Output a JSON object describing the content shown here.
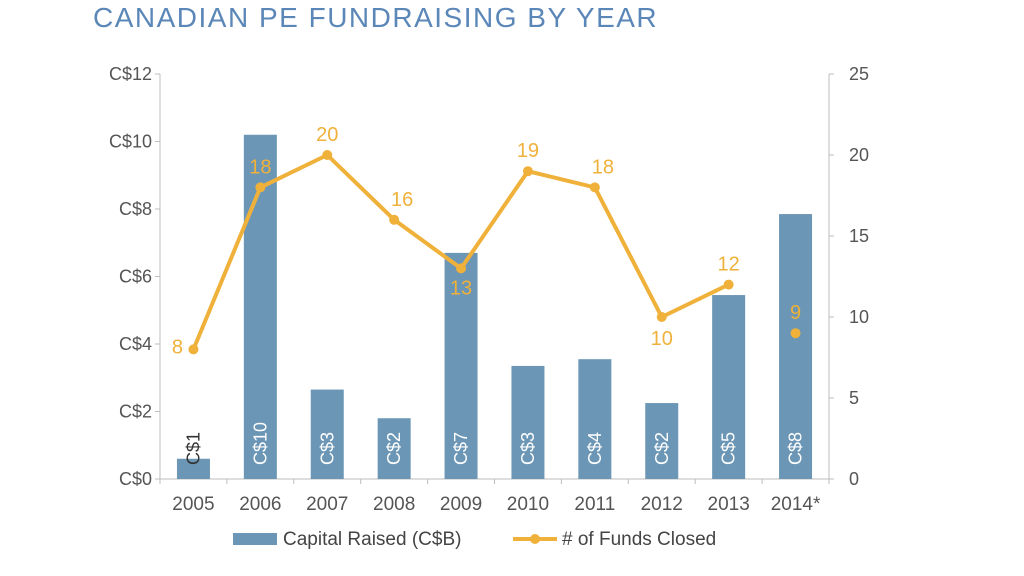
{
  "chart_data": {
    "type": "bar",
    "title": "CANADIAN PE FUNDRAISING BY YEAR",
    "categories": [
      "2005",
      "2006",
      "2007",
      "2008",
      "2009",
      "2010",
      "2011",
      "2012",
      "2013",
      "2014*"
    ],
    "y_left": {
      "ylim": [
        0,
        12
      ],
      "ticks": [
        "C$0",
        "C$2",
        "C$4",
        "C$6",
        "C$8",
        "C$10",
        "C$12"
      ],
      "tick_values": [
        0,
        2,
        4,
        6,
        8,
        10,
        12
      ]
    },
    "y_right": {
      "ylim": [
        0,
        25
      ],
      "ticks": [
        "0",
        "5",
        "10",
        "15",
        "20",
        "25"
      ],
      "tick_values": [
        0,
        5,
        10,
        15,
        20,
        25
      ]
    },
    "grid": false,
    "legend_position": "bottom",
    "series": [
      {
        "name": "Capital Raised (C$B)",
        "type": "bar",
        "axis": "left",
        "color": "#6b96b5",
        "values": [
          0.6,
          10.2,
          2.65,
          1.8,
          6.7,
          3.35,
          3.55,
          2.25,
          5.45,
          7.85
        ],
        "labels": [
          "C$1",
          "C$10",
          "C$3",
          "C$2",
          "C$7",
          "C$3",
          "C$4",
          "C$2",
          "C$5",
          "C$8"
        ]
      },
      {
        "name": "# of Funds Closed",
        "type": "line",
        "axis": "right",
        "color": "#f0b13a",
        "values": [
          8,
          18,
          20,
          16,
          13,
          19,
          18,
          10,
          12,
          9
        ],
        "labels": [
          "8",
          "18",
          "20",
          "16",
          "13",
          "19",
          "18",
          "10",
          "12",
          "9"
        ],
        "connected_through": "2013"
      }
    ]
  }
}
